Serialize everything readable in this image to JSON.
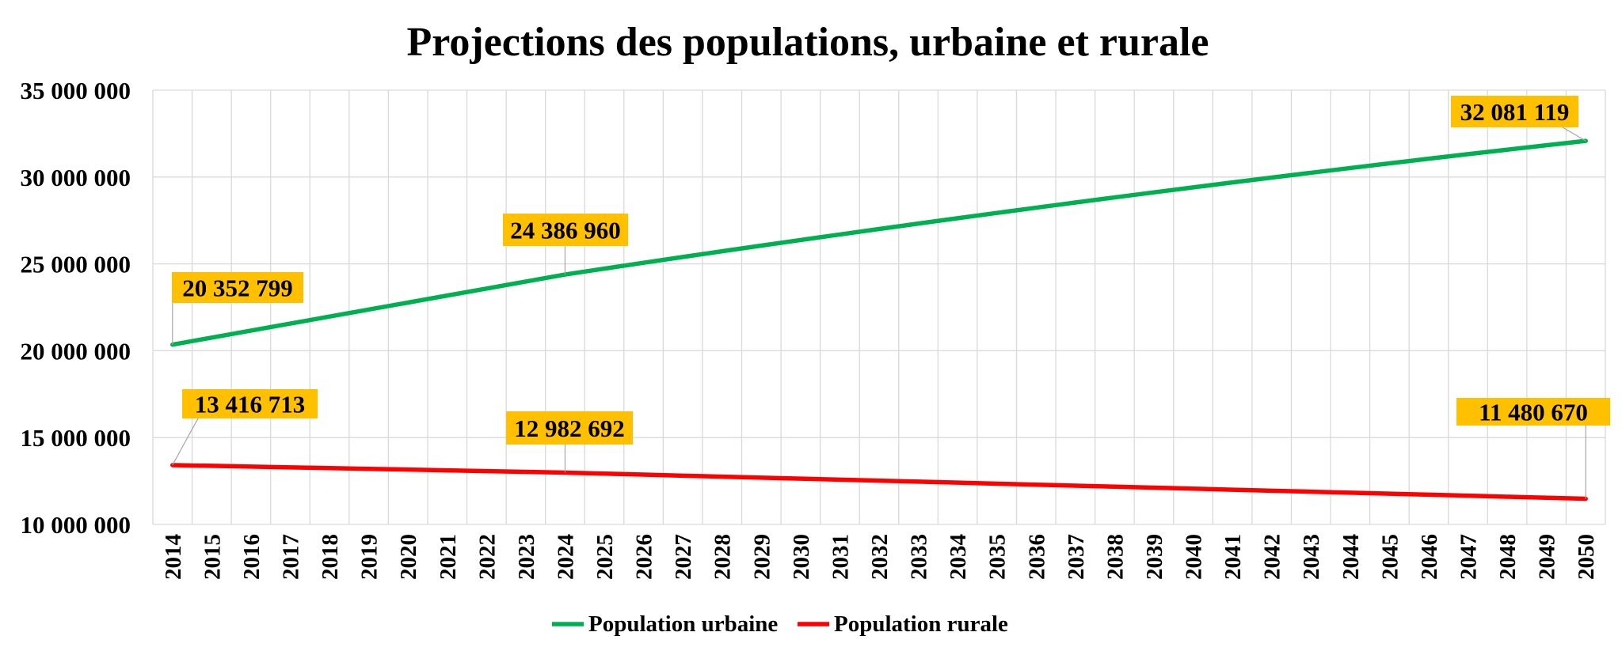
{
  "chart_data": {
    "type": "line",
    "title": "Projections des populations, urbaine et rurale",
    "xlabel": "",
    "ylabel": "",
    "ylim": [
      10000000,
      35000000
    ],
    "yticks": [
      10000000,
      15000000,
      20000000,
      25000000,
      30000000,
      35000000
    ],
    "ytick_labels": [
      "10 000 000",
      "15 000 000",
      "20 000 000",
      "25 000 000",
      "30 000 000",
      "35 000 000"
    ],
    "grid": true,
    "legend_position": "bottom",
    "categories": [
      "2014",
      "2015",
      "2016",
      "2017",
      "2018",
      "2019",
      "2020",
      "2021",
      "2022",
      "2023",
      "2024",
      "2025",
      "2026",
      "2027",
      "2028",
      "2029",
      "2030",
      "2031",
      "2032",
      "2033",
      "2034",
      "2035",
      "2036",
      "2037",
      "2038",
      "2039",
      "2040",
      "2041",
      "2042",
      "2043",
      "2044",
      "2045",
      "2046",
      "2047",
      "2048",
      "2049",
      "2050"
    ],
    "series": [
      {
        "name": "Population urbaine",
        "color": "#00B050",
        "values": [
          20352799,
          20756000,
          21160000,
          21563000,
          21966000,
          22370000,
          22773000,
          23177000,
          23580000,
          23983000,
          24386960,
          24727000,
          25063000,
          25396000,
          25726000,
          26052000,
          26374000,
          26693000,
          27008000,
          27320000,
          27629000,
          27933000,
          28235000,
          28532000,
          28827000,
          29117000,
          29405000,
          29688000,
          29968000,
          30245000,
          30518000,
          30788000,
          31054000,
          31316000,
          31575000,
          31831000,
          32081119
        ]
      },
      {
        "name": "Population rurale",
        "color": "#FF0000",
        "values": [
          13416713,
          13373000,
          13330000,
          13287000,
          13243000,
          13200000,
          13157000,
          13113000,
          13070000,
          13026000,
          12982692,
          12925000,
          12867000,
          12809000,
          12752000,
          12694000,
          12636000,
          12578000,
          12521000,
          12463000,
          12405000,
          12347000,
          12289000,
          12232000,
          12174000,
          12116000,
          12058000,
          12000000,
          11943000,
          11885000,
          11827000,
          11769000,
          11712000,
          11654000,
          11596000,
          11538000,
          11480670
        ]
      }
    ],
    "annotations": [
      {
        "series": 0,
        "category": "2014",
        "text": "20 352 799"
      },
      {
        "series": 0,
        "category": "2024",
        "text": "24 386 960"
      },
      {
        "series": 0,
        "category": "2050",
        "text": "32 081 119"
      },
      {
        "series": 1,
        "category": "2014",
        "text": "13 416 713"
      },
      {
        "series": 1,
        "category": "2024",
        "text": "12 982 692"
      },
      {
        "series": 1,
        "category": "2050",
        "text": "11 480 670"
      }
    ],
    "annotation_color": "#FFC000"
  }
}
